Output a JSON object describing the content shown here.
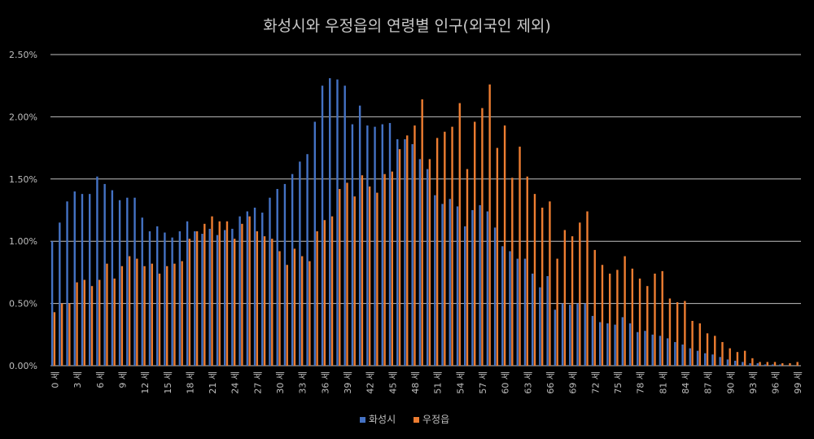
{
  "chart_data": {
    "type": "bar",
    "title": "화성시와 우정읍의 연령별 인구(외국인 제외)",
    "xlabel": "",
    "ylabel": "",
    "ylim": [
      0,
      2.5
    ],
    "y_unit": "%",
    "y_ticks": [
      "0.00%",
      "0.50%",
      "1.00%",
      "1.50%",
      "2.00%",
      "2.50%"
    ],
    "x_tick_labels": [
      "0 세",
      "3 세",
      "6 세",
      "9 세",
      "12 세",
      "15 세",
      "18 세",
      "21 세",
      "24 세",
      "27 세",
      "30 세",
      "33 세",
      "36 세",
      "39 세",
      "42 세",
      "45 세",
      "48 세",
      "51 세",
      "54 세",
      "57 세",
      "60 세",
      "63 세",
      "66 세",
      "69 세",
      "72 세",
      "75 세",
      "78 세",
      "81 세",
      "84 세",
      "87 세",
      "90 세",
      "93 세",
      "96 세",
      "99 세"
    ],
    "legend": "bottom",
    "grid": true,
    "categories": [
      0,
      1,
      2,
      3,
      4,
      5,
      6,
      7,
      8,
      9,
      10,
      11,
      12,
      13,
      14,
      15,
      16,
      17,
      18,
      19,
      20,
      21,
      22,
      23,
      24,
      25,
      26,
      27,
      28,
      29,
      30,
      31,
      32,
      33,
      34,
      35,
      36,
      37,
      38,
      39,
      40,
      41,
      42,
      43,
      44,
      45,
      46,
      47,
      48,
      49,
      50,
      51,
      52,
      53,
      54,
      55,
      56,
      57,
      58,
      59,
      60,
      61,
      62,
      63,
      64,
      65,
      66,
      67,
      68,
      69,
      70,
      71,
      72,
      73,
      74,
      75,
      76,
      77,
      78,
      79,
      80,
      81,
      82,
      83,
      84,
      85,
      86,
      87,
      88,
      89,
      90,
      91,
      92,
      93,
      94,
      95,
      96,
      97,
      98,
      99
    ],
    "series": [
      {
        "name": "화성시",
        "color": "#4472c4",
        "values": [
          1.0,
          1.15,
          1.32,
          1.4,
          1.38,
          1.38,
          1.52,
          1.46,
          1.41,
          1.33,
          1.35,
          1.35,
          1.19,
          1.08,
          1.12,
          1.07,
          1.03,
          1.08,
          1.16,
          1.08,
          1.06,
          1.1,
          1.05,
          1.09,
          1.1,
          1.2,
          1.24,
          1.27,
          1.23,
          1.35,
          1.42,
          1.46,
          1.54,
          1.64,
          1.7,
          1.96,
          2.25,
          2.31,
          2.3,
          2.25,
          1.94,
          2.09,
          1.93,
          1.92,
          1.94,
          1.95,
          1.82,
          1.82,
          1.78,
          1.66,
          1.58,
          1.37,
          1.3,
          1.34,
          1.28,
          1.12,
          1.25,
          1.29,
          1.24,
          1.11,
          0.96,
          0.92,
          0.86,
          0.86,
          0.74,
          0.63,
          0.72,
          0.45,
          0.5,
          0.49,
          0.5,
          0.5,
          0.4,
          0.35,
          0.34,
          0.33,
          0.39,
          0.34,
          0.27,
          0.28,
          0.25,
          0.24,
          0.22,
          0.19,
          0.17,
          0.14,
          0.12,
          0.1,
          0.09,
          0.07,
          0.05,
          0.04,
          0.03,
          0.02,
          0.02,
          0.01,
          0.01,
          0.01,
          0.0,
          0.0
        ]
      },
      {
        "name": "우정읍",
        "color": "#ed7d31",
        "values": [
          0.43,
          0.5,
          0.5,
          0.67,
          0.69,
          0.64,
          0.69,
          0.82,
          0.7,
          0.8,
          0.88,
          0.86,
          0.8,
          0.82,
          0.74,
          0.8,
          0.82,
          0.84,
          1.02,
          1.08,
          1.14,
          1.2,
          1.16,
          1.16,
          1.02,
          1.14,
          1.2,
          1.08,
          1.04,
          1.02,
          0.92,
          0.81,
          0.94,
          0.88,
          0.84,
          1.08,
          1.17,
          1.2,
          1.42,
          1.47,
          1.36,
          1.53,
          1.44,
          1.39,
          1.54,
          1.56,
          1.74,
          1.85,
          1.93,
          2.14,
          1.66,
          1.83,
          1.88,
          1.92,
          2.11,
          1.58,
          1.96,
          2.07,
          2.26,
          1.75,
          1.93,
          1.51,
          1.76,
          1.52,
          1.38,
          1.27,
          1.32,
          0.86,
          1.09,
          1.04,
          1.15,
          1.24,
          0.93,
          0.81,
          0.74,
          0.77,
          0.88,
          0.78,
          0.7,
          0.64,
          0.74,
          0.76,
          0.54,
          0.51,
          0.52,
          0.36,
          0.34,
          0.26,
          0.24,
          0.19,
          0.14,
          0.11,
          0.12,
          0.06,
          0.03,
          0.03,
          0.03,
          0.02,
          0.02,
          0.03
        ]
      }
    ]
  }
}
